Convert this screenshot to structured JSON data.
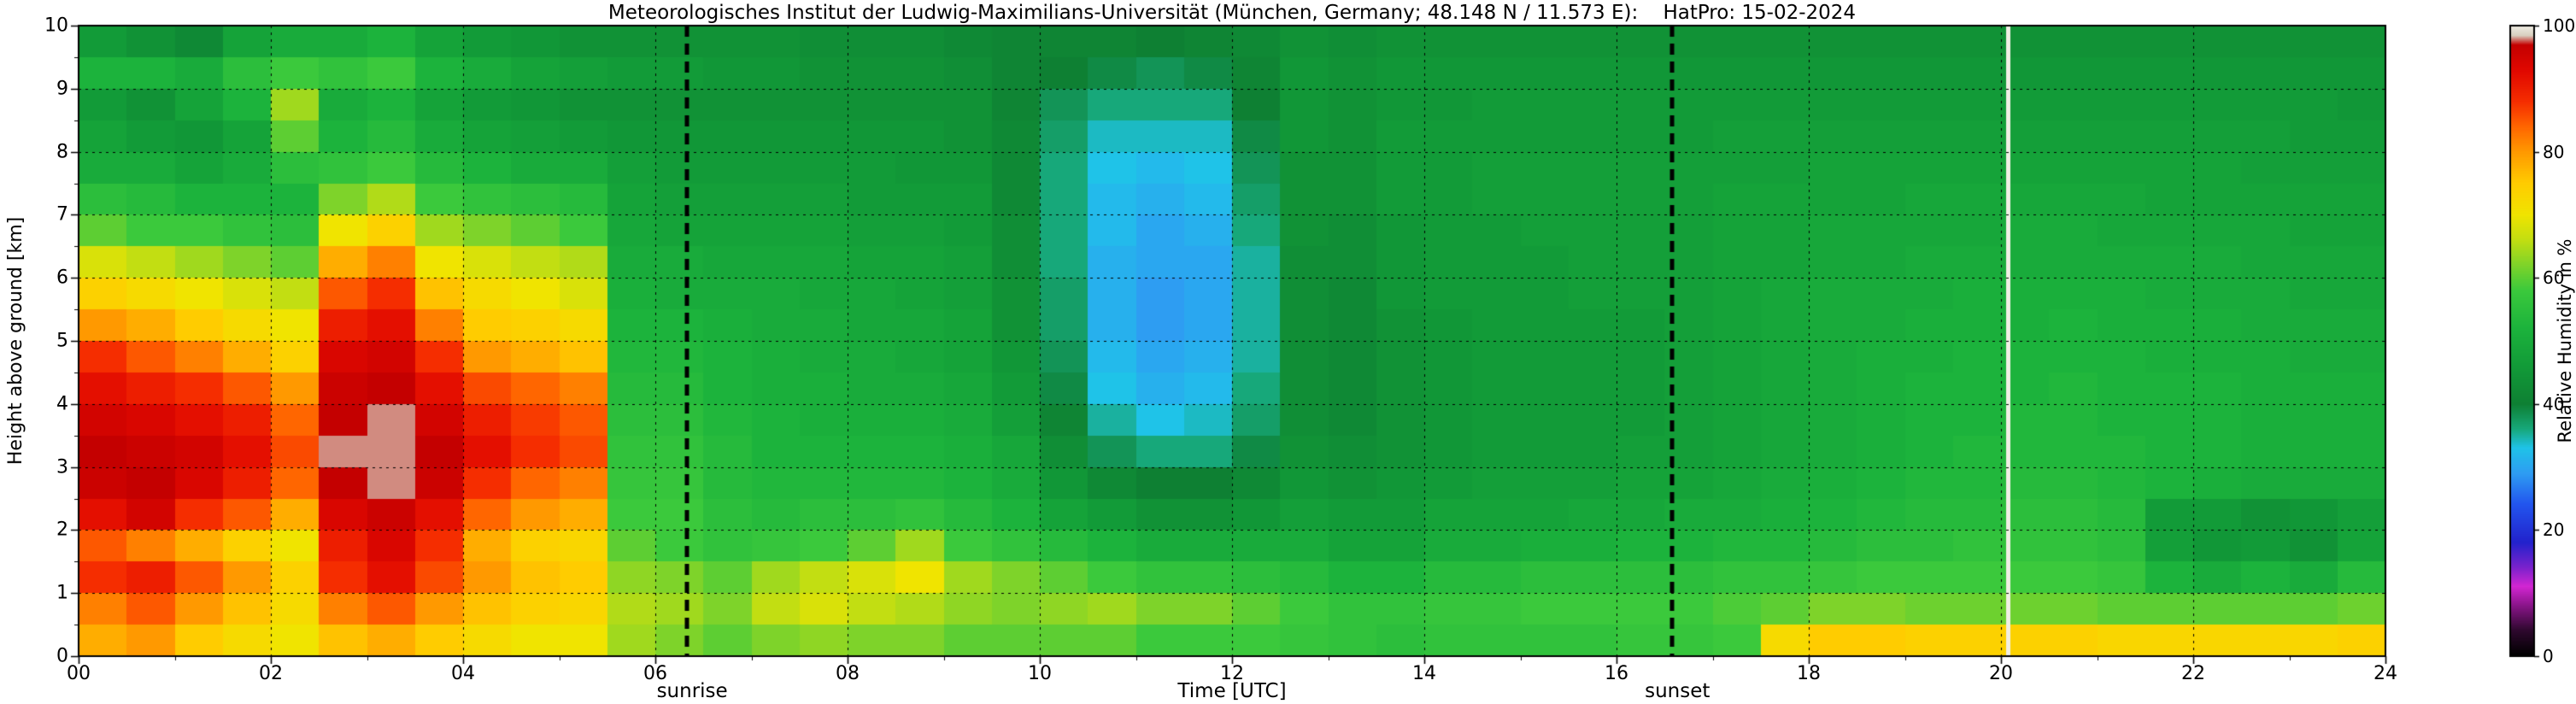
{
  "annotations": {
    "sunrise_label": "sunrise",
    "sunrise_time_utc": 6.33,
    "sunset_label": "sunset",
    "sunset_time_utc": 16.58,
    "data_gap_time_utc": 20.07
  },
  "chart_data": {
    "type": "heatmap",
    "title": "Meteorologisches Institut der Ludwig-Maximilians-Universität (München, Germany; 48.148 N / 11.573 E):    HatPro: 15-02-2024",
    "xlabel": "Time [UTC]",
    "ylabel": "Height above ground [km]",
    "xlim": [
      0,
      24
    ],
    "ylim": [
      0,
      10
    ],
    "x_tick_values": [
      0,
      2,
      4,
      6,
      8,
      10,
      12,
      14,
      16,
      18,
      20,
      22,
      24
    ],
    "x_tick_labels": [
      "00",
      "02",
      "04",
      "06",
      "08",
      "10",
      "12",
      "14",
      "16",
      "18",
      "20",
      "22",
      "24"
    ],
    "x_minor_tick_values": [
      1,
      3,
      5,
      7,
      9,
      11,
      13,
      15,
      17,
      19,
      21,
      23
    ],
    "y_tick_values": [
      0,
      1,
      2,
      3,
      4,
      5,
      6,
      7,
      8,
      9,
      10
    ],
    "y_tick_labels": [
      "0",
      "1",
      "2",
      "3",
      "4",
      "5",
      "6",
      "7",
      "8",
      "9",
      "10"
    ],
    "gridlines": {
      "x_hours": [
        2,
        4,
        6,
        8,
        10,
        12,
        14,
        16,
        18,
        20,
        22
      ],
      "y_km": [
        1,
        2,
        3,
        4,
        5,
        6,
        7,
        8,
        9
      ],
      "style": "dashed-black"
    },
    "colorbar": {
      "label": "Relative Humidity in %",
      "range": [
        0,
        100
      ],
      "tick_values": [
        0,
        20,
        40,
        60,
        80,
        100
      ],
      "tick_labels": [
        "0",
        "20",
        "40",
        "60",
        "80",
        "100"
      ],
      "color_stops": [
        [
          0,
          "#000000"
        ],
        [
          4,
          "#2e082e"
        ],
        [
          8,
          "#8a158a"
        ],
        [
          11,
          "#d226d2"
        ],
        [
          14,
          "#7a22cc"
        ],
        [
          18,
          "#2222cc"
        ],
        [
          24,
          "#2255ee"
        ],
        [
          29,
          "#2e9df2"
        ],
        [
          33,
          "#1fc3e8"
        ],
        [
          36,
          "#17a87a"
        ],
        [
          40,
          "#0e8033"
        ],
        [
          46,
          "#129b38"
        ],
        [
          52,
          "#1cb33c"
        ],
        [
          58,
          "#3bc93c"
        ],
        [
          62,
          "#7ed32a"
        ],
        [
          66,
          "#c2de12"
        ],
        [
          70,
          "#f0e400"
        ],
        [
          75,
          "#ffcc00"
        ],
        [
          80,
          "#ff9900"
        ],
        [
          84,
          "#ff6600"
        ],
        [
          88,
          "#f52d00"
        ],
        [
          93,
          "#e00800"
        ],
        [
          97,
          "#c40000"
        ],
        [
          98.5,
          "#d8d0c0"
        ],
        [
          100,
          "#efece2"
        ]
      ]
    },
    "time_bin_start_hours_utc": [
      0,
      0.5,
      1,
      1.5,
      2,
      2.5,
      3,
      3.5,
      4,
      4.5,
      5,
      5.5,
      6,
      6.5,
      7,
      7.5,
      8,
      8.5,
      9,
      9.5,
      10,
      10.5,
      11,
      11.5,
      12,
      12.5,
      13,
      13.5,
      14,
      14.5,
      15,
      15.5,
      16,
      16.5,
      17,
      17.5,
      18,
      18.5,
      19,
      19.5,
      20,
      20.5,
      21,
      21.5,
      22,
      22.5,
      23,
      23.5
    ],
    "height_bin_start_km": [
      0,
      0.5,
      1,
      1.5,
      2,
      2.5,
      3,
      3.5,
      4,
      4.5,
      5,
      5.5,
      6,
      6.5,
      7,
      7.5,
      8,
      8.5,
      9,
      9.5
    ],
    "humidity_percent_rows_bottom_to_top": [
      [
        78,
        82,
        88,
        85,
        92,
        96,
        97,
        95,
        92,
        88,
        80,
        74,
        68,
        60,
        55,
        50,
        48,
        46,
        52,
        46
      ],
      [
        80,
        85,
        90,
        82,
        95,
        97,
        96,
        94,
        90,
        85,
        78,
        72,
        66,
        58,
        54,
        50,
        46,
        44,
        52,
        44
      ],
      [
        75,
        80,
        85,
        78,
        88,
        94,
        95,
        92,
        88,
        82,
        75,
        70,
        64,
        58,
        52,
        48,
        45,
        48,
        50,
        42
      ],
      [
        72,
        76,
        80,
        74,
        85,
        90,
        92,
        90,
        85,
        78,
        72,
        68,
        62,
        56,
        52,
        50,
        48,
        52,
        55,
        48
      ],
      [
        70,
        72,
        74,
        70,
        78,
        84,
        86,
        84,
        80,
        74,
        70,
        66,
        60,
        55,
        52,
        55,
        60,
        64,
        58,
        50
      ],
      [
        76,
        82,
        88,
        90,
        94,
        97,
        98,
        97,
        96,
        94,
        90,
        85,
        78,
        70,
        62,
        56,
        52,
        50,
        56,
        50
      ],
      [
        78,
        85,
        92,
        94,
        96,
        98,
        98,
        98,
        97,
        95,
        92,
        88,
        82,
        74,
        65,
        58,
        54,
        52,
        58,
        52
      ],
      [
        75,
        80,
        86,
        88,
        92,
        96,
        97,
        95,
        92,
        88,
        82,
        76,
        70,
        64,
        58,
        54,
        50,
        48,
        52,
        48
      ],
      [
        72,
        76,
        80,
        78,
        84,
        88,
        92,
        90,
        86,
        80,
        75,
        72,
        68,
        62,
        56,
        52,
        48,
        46,
        50,
        46
      ],
      [
        70,
        74,
        76,
        74,
        80,
        84,
        88,
        87,
        84,
        78,
        74,
        70,
        66,
        60,
        55,
        50,
        47,
        45,
        48,
        45
      ],
      [
        70,
        73,
        75,
        73,
        78,
        82,
        86,
        85,
        82,
        76,
        72,
        68,
        65,
        58,
        54,
        50,
        46,
        44,
        47,
        44
      ],
      [
        64,
        65,
        63,
        60,
        58,
        57,
        56,
        55,
        54,
        53,
        52,
        51,
        50,
        49,
        48,
        47,
        45,
        44,
        46,
        44
      ],
      [
        62,
        64,
        62,
        58,
        58,
        57,
        56,
        55,
        54,
        53,
        52,
        50,
        50,
        48,
        47,
        46,
        45,
        44,
        46,
        44
      ],
      [
        60,
        62,
        60,
        56,
        55,
        54,
        54,
        53,
        52,
        52,
        51,
        50,
        49,
        48,
        47,
        46,
        45,
        44,
        45,
        44
      ],
      [
        62,
        66,
        64,
        57,
        54,
        53,
        52,
        52,
        51,
        51,
        50,
        50,
        49,
        48,
        47,
        46,
        45,
        44,
        45,
        44
      ],
      [
        63,
        68,
        66,
        58,
        55,
        53,
        52,
        51,
        51,
        50,
        50,
        49,
        49,
        48,
        47,
        46,
        45,
        44,
        44,
        43
      ],
      [
        62,
        66,
        68,
        60,
        55,
        53,
        52,
        51,
        50,
        50,
        49,
        49,
        48,
        47,
        46,
        46,
        45,
        44,
        44,
        43
      ],
      [
        62,
        65,
        70,
        64,
        56,
        53,
        52,
        51,
        50,
        49,
        49,
        48,
        48,
        47,
        46,
        45,
        45,
        44,
        44,
        43
      ],
      [
        60,
        63,
        64,
        58,
        54,
        52,
        51,
        50,
        49,
        48,
        48,
        47,
        47,
        46,
        46,
        45,
        44,
        44,
        43,
        42
      ],
      [
        60,
        62,
        62,
        56,
        52,
        50,
        49,
        47,
        46,
        45,
        44,
        44,
        43,
        43,
        42,
        42,
        42,
        41,
        41,
        41
      ],
      [
        60,
        63,
        60,
        54,
        48,
        45,
        43,
        41,
        39,
        38,
        37,
        37,
        36,
        36,
        36,
        36,
        37,
        38,
        40,
        41
      ],
      [
        60,
        64,
        58,
        52,
        46,
        42,
        38,
        35,
        33,
        32,
        31,
        31,
        31,
        32,
        32,
        33,
        34,
        36,
        39,
        41
      ],
      [
        58,
        62,
        56,
        50,
        44,
        40,
        36,
        33,
        31,
        30,
        29,
        29,
        30,
        30,
        31,
        32,
        34,
        36,
        38,
        40
      ],
      [
        58,
        62,
        56,
        50,
        44,
        40,
        36,
        34,
        32,
        31,
        30,
        30,
        30,
        31,
        32,
        33,
        34,
        36,
        39,
        41
      ],
      [
        58,
        60,
        55,
        50,
        45,
        42,
        39,
        37,
        36,
        35,
        35,
        35,
        35,
        36,
        37,
        38,
        39,
        40,
        41,
        42
      ],
      [
        57,
        58,
        54,
        50,
        47,
        45,
        44,
        43,
        43,
        43,
        43,
        43,
        43,
        44,
        44,
        44,
        45,
        45,
        45,
        44
      ],
      [
        56,
        56,
        52,
        48,
        46,
        44,
        43,
        42,
        42,
        42,
        42,
        42,
        43,
        43,
        44,
        44,
        44,
        44,
        44,
        43
      ],
      [
        55,
        56,
        52,
        48,
        46,
        45,
        44,
        44,
        44,
        44,
        44,
        45,
        45,
        45,
        46,
        46,
        46,
        45,
        45,
        44
      ],
      [
        56,
        57,
        54,
        50,
        48,
        46,
        45,
        45,
        45,
        45,
        45,
        46,
        46,
        46,
        46,
        46,
        46,
        45,
        45,
        44
      ],
      [
        56,
        57,
        54,
        50,
        48,
        47,
        46,
        46,
        46,
        46,
        46,
        46,
        46,
        46,
        47,
        47,
        46,
        46,
        45,
        44
      ],
      [
        56,
        58,
        55,
        51,
        48,
        47,
        46,
        46,
        46,
        46,
        46,
        46,
        46,
        47,
        47,
        47,
        46,
        46,
        45,
        44
      ],
      [
        56,
        58,
        55,
        51,
        49,
        47,
        46,
        46,
        46,
        46,
        46,
        47,
        47,
        47,
        47,
        47,
        46,
        46,
        45,
        44
      ],
      [
        57,
        58,
        55,
        52,
        49,
        48,
        47,
        46,
        46,
        46,
        46,
        47,
        47,
        47,
        47,
        47,
        46,
        46,
        45,
        44
      ],
      [
        57,
        58,
        55,
        52,
        50,
        48,
        47,
        47,
        47,
        47,
        47,
        47,
        47,
        47,
        47,
        47,
        46,
        46,
        45,
        44
      ],
      [
        58,
        59,
        56,
        53,
        50,
        49,
        48,
        48,
        48,
        48,
        48,
        48,
        48,
        48,
        48,
        47,
        47,
        46,
        45,
        44
      ],
      [
        72,
        60,
        56,
        53,
        51,
        50,
        49,
        49,
        49,
        49,
        49,
        49,
        48,
        48,
        48,
        47,
        47,
        46,
        45,
        44
      ],
      [
        75,
        62,
        57,
        54,
        52,
        51,
        50,
        50,
        50,
        50,
        50,
        50,
        49,
        49,
        48,
        48,
        47,
        46,
        45,
        44
      ],
      [
        75,
        62,
        58,
        55,
        53,
        52,
        51,
        51,
        51,
        51,
        50,
        50,
        49,
        49,
        48,
        48,
        47,
        46,
        45,
        44
      ],
      [
        74,
        61,
        58,
        55,
        54,
        53,
        52,
        52,
        52,
        51,
        51,
        50,
        50,
        49,
        49,
        48,
        47,
        46,
        45,
        44
      ],
      [
        74,
        61,
        58,
        56,
        54,
        53,
        53,
        52,
        52,
        52,
        51,
        51,
        50,
        49,
        49,
        48,
        47,
        46,
        45,
        44
      ],
      [
        74,
        61,
        58,
        56,
        55,
        54,
        53,
        53,
        52,
        52,
        51,
        51,
        50,
        50,
        49,
        48,
        47,
        46,
        45,
        44
      ],
      [
        74,
        61,
        58,
        56,
        55,
        54,
        53,
        53,
        53,
        52,
        52,
        51,
        50,
        50,
        49,
        48,
        47,
        46,
        45,
        44
      ],
      [
        73,
        60,
        57,
        55,
        54,
        53,
        53,
        52,
        52,
        52,
        51,
        51,
        50,
        49,
        49,
        48,
        47,
        46,
        45,
        44
      ],
      [
        73,
        60,
        52,
        47,
        46,
        52,
        52,
        52,
        52,
        51,
        51,
        50,
        50,
        49,
        48,
        48,
        47,
        46,
        45,
        44
      ],
      [
        73,
        60,
        50,
        45,
        46,
        51,
        52,
        52,
        52,
        51,
        51,
        50,
        50,
        49,
        48,
        48,
        47,
        46,
        45,
        44
      ],
      [
        73,
        60,
        52,
        46,
        44,
        50,
        51,
        51,
        51,
        51,
        50,
        50,
        49,
        49,
        48,
        47,
        47,
        46,
        45,
        44
      ],
      [
        73,
        60,
        50,
        44,
        45,
        50,
        51,
        51,
        51,
        50,
        50,
        49,
        49,
        48,
        48,
        47,
        46,
        46,
        45,
        44
      ],
      [
        74,
        61,
        54,
        48,
        47,
        50,
        51,
        51,
        51,
        50,
        50,
        49,
        49,
        48,
        48,
        47,
        46,
        45,
        45,
        44
      ]
    ]
  }
}
